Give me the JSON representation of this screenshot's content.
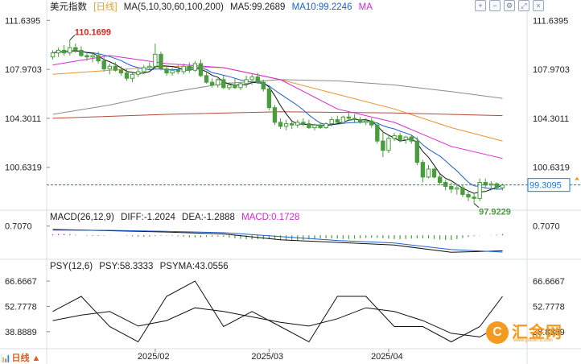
{
  "header": {
    "title": "美元指数",
    "period": "[日线]",
    "ma_params": "MA(5,10,30,60,100,200)",
    "ma5": "MA5:99.2689",
    "ma10": "MA10:99.2246",
    "ma20": "MA"
  },
  "macd_header": {
    "params": "MACD(26,12,9)",
    "dif": "DIFF:-1.2024",
    "dea": "DEA:-1.2888",
    "macd": "MACD:0.1728"
  },
  "psy_header": {
    "params": "PSY(12,6)",
    "psy": "PSY:58.3333",
    "psyma": "PSYMA:43.0556"
  },
  "toolbar": {
    "icons": [
      "zoom-in-icon",
      "zoom-out-icon",
      "settings-icon",
      "fullscreen-icon",
      "close-icon"
    ]
  },
  "watermark": {
    "brand": "汇金网",
    "url": "www.gold678.com",
    "logo_glyph": "C"
  },
  "corner": {
    "label": "日线 ▲"
  },
  "colors": {
    "up": "#4a9d3e",
    "down": "#4a9d3e",
    "ma5": "#111111",
    "ma10": "#1f5fd0",
    "ma20": "#d429d2",
    "ma30": "#e59530",
    "ma60": "#8b8b8b",
    "ma200": "#b24a3b",
    "price_line": "#1c7ad6",
    "current_price_bg": "#ffffff",
    "axis_text": "#222222",
    "grid": "#d9dfe6",
    "macd_pos": "#d429d2",
    "macd_neg": "#4a9d3e",
    "highlight": "#cc2b1d"
  },
  "chart_data": [
    {
      "type": "candlestick",
      "panel": "price",
      "y_ticks": [
        111.6395,
        107.9703,
        104.3011,
        100.6319
      ],
      "y_tick_labels_left": [
        "111.6395",
        "107.9703",
        "104.3011",
        "100.6319"
      ],
      "y_tick_labels_right": [
        "111.6395",
        "107.9703",
        "104.3011",
        "100.6319"
      ],
      "ylim": [
        97.6,
        112.2
      ],
      "x_labels": [
        "2025/02",
        "2025/03",
        "2025/04"
      ],
      "x_label_index": [
        18,
        38,
        59
      ],
      "current_price": "99.3095",
      "current_price_value": 99.3095,
      "high_annotation": {
        "label": "110.1699",
        "value": 110.1699,
        "index": 3
      },
      "low_annotation": {
        "label": "97.9229",
        "value": 97.9229,
        "index": 74
      },
      "candles": [
        [
          108.9,
          109.4,
          108.7,
          109.2
        ],
        [
          109.2,
          109.6,
          108.9,
          109.4
        ],
        [
          109.4,
          109.8,
          109.0,
          109.2
        ],
        [
          109.2,
          110.17,
          109.0,
          109.6
        ],
        [
          109.6,
          109.9,
          109.2,
          109.4
        ],
        [
          109.4,
          109.7,
          108.9,
          109.0
        ],
        [
          109.0,
          109.3,
          108.6,
          108.9
        ],
        [
          108.9,
          109.2,
          108.5,
          109.0
        ],
        [
          109.0,
          109.3,
          108.4,
          108.6
        ],
        [
          108.6,
          108.9,
          107.8,
          108.0
        ],
        [
          108.0,
          108.4,
          107.6,
          108.2
        ],
        [
          108.2,
          108.5,
          107.8,
          107.9
        ],
        [
          107.9,
          108.2,
          107.5,
          107.7
        ],
        [
          107.7,
          108.0,
          107.1,
          107.3
        ],
        [
          107.3,
          107.8,
          107.0,
          107.6
        ],
        [
          107.6,
          108.0,
          107.4,
          107.8
        ],
        [
          107.8,
          108.3,
          107.6,
          108.1
        ],
        [
          108.1,
          108.5,
          107.9,
          108.2
        ],
        [
          108.2,
          109.9,
          108.0,
          109.1
        ],
        [
          109.1,
          109.3,
          107.9,
          108.0
        ],
        [
          108.0,
          108.2,
          107.5,
          107.7
        ],
        [
          107.7,
          108.1,
          107.5,
          107.9
        ],
        [
          107.9,
          108.3,
          107.6,
          107.8
        ],
        [
          107.8,
          108.4,
          107.6,
          108.2
        ],
        [
          108.2,
          108.5,
          107.7,
          107.9
        ],
        [
          107.9,
          108.6,
          107.8,
          108.4
        ],
        [
          108.4,
          108.7,
          107.4,
          107.5
        ],
        [
          107.5,
          107.8,
          106.9,
          107.0
        ],
        [
          107.0,
          107.3,
          106.6,
          106.8
        ],
        [
          106.8,
          107.3,
          106.6,
          107.2
        ],
        [
          107.2,
          107.5,
          106.5,
          106.6
        ],
        [
          106.6,
          107.0,
          106.4,
          106.8
        ],
        [
          106.8,
          107.3,
          106.5,
          106.6
        ],
        [
          106.6,
          107.0,
          106.4,
          106.9
        ],
        [
          106.9,
          107.5,
          106.6,
          107.2
        ],
        [
          107.2,
          107.6,
          106.8,
          107.4
        ],
        [
          107.4,
          107.7,
          106.9,
          107.0
        ],
        [
          107.0,
          107.2,
          106.3,
          106.5
        ],
        [
          106.5,
          106.7,
          104.9,
          105.1
        ],
        [
          105.1,
          105.3,
          103.8,
          104.0
        ],
        [
          104.0,
          104.3,
          103.5,
          103.7
        ],
        [
          103.7,
          104.2,
          103.4,
          103.9
        ],
        [
          103.9,
          104.1,
          103.5,
          103.8
        ],
        [
          103.8,
          104.2,
          103.6,
          104.0
        ],
        [
          104.0,
          104.3,
          103.7,
          103.9
        ],
        [
          103.9,
          104.2,
          103.5,
          103.6
        ],
        [
          103.6,
          103.9,
          103.4,
          103.8
        ],
        [
          103.8,
          104.0,
          103.5,
          103.6
        ],
        [
          103.6,
          104.0,
          103.5,
          103.9
        ],
        [
          103.9,
          104.4,
          103.7,
          104.2
        ],
        [
          104.2,
          104.5,
          103.9,
          104.0
        ],
        [
          104.0,
          104.5,
          103.9,
          104.4
        ],
        [
          104.4,
          104.7,
          104.1,
          104.3
        ],
        [
          104.3,
          104.6,
          104.0,
          104.2
        ],
        [
          104.2,
          104.4,
          103.9,
          104.0
        ],
        [
          104.0,
          104.3,
          103.8,
          104.1
        ],
        [
          104.1,
          104.3,
          103.6,
          103.8
        ],
        [
          103.8,
          104.0,
          102.4,
          102.6
        ],
        [
          102.6,
          103.4,
          101.4,
          101.9
        ],
        [
          101.9,
          103.1,
          101.7,
          102.8
        ],
        [
          102.8,
          103.2,
          102.6,
          103.0
        ],
        [
          103.0,
          103.2,
          102.5,
          102.7
        ],
        [
          102.7,
          103.0,
          102.4,
          102.9
        ],
        [
          102.9,
          103.0,
          102.4,
          102.6
        ],
        [
          102.6,
          102.9,
          100.8,
          101.0
        ],
        [
          101.0,
          101.2,
          99.5,
          99.9
        ],
        [
          99.9,
          100.8,
          99.8,
          100.5
        ],
        [
          100.5,
          100.6,
          99.8,
          99.9
        ],
        [
          99.9,
          100.1,
          99.3,
          99.5
        ],
        [
          99.5,
          99.7,
          98.9,
          99.2
        ],
        [
          99.2,
          99.5,
          98.7,
          99.0
        ],
        [
          99.0,
          99.4,
          98.6,
          99.1
        ],
        [
          99.1,
          99.3,
          98.4,
          98.6
        ],
        [
          98.6,
          98.9,
          98.1,
          98.4
        ],
        [
          98.4,
          98.7,
          97.92,
          98.3
        ],
        [
          98.3,
          99.8,
          98.1,
          99.5
        ],
        [
          99.5,
          99.8,
          99.1,
          99.3
        ],
        [
          99.3,
          99.6,
          98.9,
          99.4
        ],
        [
          99.4,
          99.5,
          99.0,
          99.1
        ],
        [
          99.1,
          99.4,
          98.9,
          99.3
        ]
      ],
      "moving_averages": [
        {
          "name": "MA30",
          "color_key": "ma30",
          "points": [
            [
              0,
              107.6
            ],
            [
              10,
              107.9
            ],
            [
              20,
              108.2
            ],
            [
              30,
              108.1
            ],
            [
              40,
              107.2
            ],
            [
              50,
              106.1
            ],
            [
              60,
              105.0
            ],
            [
              70,
              103.6
            ],
            [
              79,
              102.6
            ]
          ]
        },
        {
          "name": "MA60",
          "color_key": "ma60",
          "points": [
            [
              0,
              104.6
            ],
            [
              10,
              105.3
            ],
            [
              20,
              106.2
            ],
            [
              30,
              106.9
            ],
            [
              40,
              107.2
            ],
            [
              50,
              107.1
            ],
            [
              60,
              106.8
            ],
            [
              70,
              106.3
            ],
            [
              79,
              105.8
            ]
          ]
        },
        {
          "name": "MA200",
          "color_key": "ma200",
          "points": [
            [
              0,
              104.3
            ],
            [
              20,
              104.6
            ],
            [
              40,
              104.8
            ],
            [
              60,
              104.7
            ],
            [
              79,
              104.5
            ]
          ]
        },
        {
          "name": "MA20",
          "color_key": "ma20",
          "points": [
            [
              0,
              108.3
            ],
            [
              10,
              109.0
            ],
            [
              20,
              108.4
            ],
            [
              30,
              108.1
            ],
            [
              40,
              107.2
            ],
            [
              50,
              105.0
            ],
            [
              60,
              104.0
            ],
            [
              70,
              102.2
            ],
            [
              79,
              101.3
            ]
          ]
        }
      ]
    },
    {
      "type": "macd",
      "panel": "macd",
      "y_ticks": [
        0.707
      ],
      "y_tick_labels_left": [
        "0.7070"
      ],
      "y_tick_labels_right": [
        "0.7070"
      ],
      "ylim": [
        -1.6,
        1.0
      ],
      "dif": [
        [
          0,
          0.45
        ],
        [
          10,
          0.35
        ],
        [
          20,
          0.25
        ],
        [
          30,
          0.1
        ],
        [
          40,
          -0.35
        ],
        [
          50,
          -0.55
        ],
        [
          60,
          -0.75
        ],
        [
          70,
          -1.3
        ],
        [
          79,
          -1.2
        ]
      ],
      "dea": [
        [
          0,
          0.4
        ],
        [
          10,
          0.38
        ],
        [
          20,
          0.3
        ],
        [
          30,
          0.2
        ],
        [
          40,
          -0.1
        ],
        [
          50,
          -0.4
        ],
        [
          60,
          -0.6
        ],
        [
          70,
          -1.1
        ],
        [
          79,
          -1.29
        ]
      ],
      "histogram_sign_changes": "mixed"
    },
    {
      "type": "line",
      "panel": "psy",
      "y_ticks": [
        66.6667,
        52.7778,
        38.8889
      ],
      "y_tick_labels_left": [
        "66.6667",
        "52.7778",
        "38.8889"
      ],
      "y_tick_labels_right": [
        "66.6667",
        "52.7778",
        "38.8889"
      ],
      "ylim": [
        30,
        72
      ],
      "psy": [
        [
          0,
          50
        ],
        [
          5,
          58.3
        ],
        [
          10,
          41.7
        ],
        [
          15,
          33.3
        ],
        [
          20,
          58.3
        ],
        [
          25,
          66.7
        ],
        [
          30,
          41.7
        ],
        [
          35,
          50
        ],
        [
          40,
          41.7
        ],
        [
          45,
          33.3
        ],
        [
          50,
          58.3
        ],
        [
          55,
          58.3
        ],
        [
          60,
          41.7
        ],
        [
          65,
          41.7
        ],
        [
          70,
          33.3
        ],
        [
          75,
          41.7
        ],
        [
          79,
          58.3
        ]
      ],
      "psyma": [
        [
          0,
          45
        ],
        [
          5,
          48
        ],
        [
          10,
          50
        ],
        [
          15,
          42
        ],
        [
          20,
          45
        ],
        [
          25,
          52
        ],
        [
          30,
          50
        ],
        [
          35,
          47
        ],
        [
          40,
          44
        ],
        [
          45,
          42
        ],
        [
          50,
          46
        ],
        [
          55,
          52
        ],
        [
          60,
          50
        ],
        [
          65,
          45
        ],
        [
          70,
          38
        ],
        [
          75,
          36
        ],
        [
          79,
          43
        ]
      ]
    }
  ]
}
